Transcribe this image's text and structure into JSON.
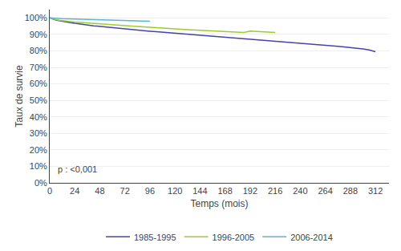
{
  "chart_data": {
    "type": "line",
    "xlabel": "Temps (mois)",
    "ylabel": "Taux de survie",
    "xlim": [
      0,
      325
    ],
    "ylim": [
      0.0,
      1.05
    ],
    "xticks": [
      0,
      24,
      48,
      72,
      96,
      120,
      144,
      168,
      192,
      216,
      240,
      264,
      288,
      312
    ],
    "yticks": [
      {
        "value": 0.0,
        "label": "0%"
      },
      {
        "value": 0.1,
        "label": "10%"
      },
      {
        "value": 0.2,
        "label": "20%"
      },
      {
        "value": 0.3,
        "label": "30%"
      },
      {
        "value": 0.4,
        "label": "40%"
      },
      {
        "value": 0.5,
        "label": "50%"
      },
      {
        "value": 0.6,
        "label": "60%"
      },
      {
        "value": 0.7,
        "label": "70%"
      },
      {
        "value": 0.8,
        "label": "80%"
      },
      {
        "value": 0.9,
        "label": "90%"
      },
      {
        "value": 1.0,
        "label": "100%"
      }
    ],
    "grid": "y",
    "legend": "bottom",
    "annotations": [
      "p : <0,001"
    ],
    "series": [
      {
        "name": "1985-1995",
        "color": "#4444aa",
        "x": [
          0,
          3,
          6,
          9,
          12,
          15,
          18,
          21,
          24,
          27,
          30,
          33,
          36,
          39,
          42,
          45,
          48,
          54,
          60,
          66,
          72,
          78,
          84,
          90,
          96,
          102,
          108,
          114,
          120,
          126,
          132,
          138,
          144,
          150,
          156,
          162,
          168,
          174,
          180,
          186,
          192,
          198,
          204,
          210,
          216,
          222,
          228,
          234,
          240,
          246,
          252,
          258,
          264,
          270,
          276,
          282,
          288,
          294,
          300,
          306,
          312
        ],
        "values": [
          1.0,
          0.993,
          0.987,
          0.983,
          0.979,
          0.976,
          0.973,
          0.97,
          0.967,
          0.964,
          0.962,
          0.959,
          0.957,
          0.955,
          0.952,
          0.95,
          0.948,
          0.944,
          0.94,
          0.936,
          0.932,
          0.929,
          0.926,
          0.922,
          0.919,
          0.916,
          0.913,
          0.91,
          0.907,
          0.904,
          0.901,
          0.898,
          0.895,
          0.892,
          0.889,
          0.887,
          0.884,
          0.881,
          0.878,
          0.875,
          0.872,
          0.869,
          0.866,
          0.863,
          0.86,
          0.857,
          0.854,
          0.851,
          0.848,
          0.845,
          0.841,
          0.838,
          0.835,
          0.832,
          0.828,
          0.824,
          0.821,
          0.817,
          0.812,
          0.806,
          0.795
        ]
      },
      {
        "name": "1996-2005",
        "color": "#9acd32",
        "x": [
          0,
          3,
          6,
          9,
          12,
          15,
          18,
          21,
          24,
          30,
          36,
          42,
          48,
          54,
          60,
          66,
          72,
          78,
          84,
          90,
          96,
          102,
          108,
          114,
          120,
          126,
          132,
          138,
          144,
          150,
          156,
          162,
          168,
          174,
          180,
          186,
          192,
          198,
          204,
          210,
          216
        ],
        "values": [
          1.0,
          0.994,
          0.989,
          0.986,
          0.983,
          0.981,
          0.979,
          0.977,
          0.975,
          0.972,
          0.969,
          0.967,
          0.964,
          0.961,
          0.958,
          0.956,
          0.953,
          0.951,
          0.948,
          0.946,
          0.943,
          0.941,
          0.938,
          0.936,
          0.934,
          0.931,
          0.929,
          0.927,
          0.925,
          0.923,
          0.921,
          0.919,
          0.917,
          0.915,
          0.913,
          0.912,
          0.92,
          0.918,
          0.916,
          0.914,
          0.912
        ]
      },
      {
        "name": "2006-2014",
        "color": "#5ab4d4",
        "x": [
          0,
          3,
          6,
          9,
          12,
          18,
          24,
          30,
          36,
          42,
          48,
          54,
          60,
          66,
          72,
          78,
          84,
          90,
          96
        ],
        "values": [
          1.0,
          0.998,
          0.997,
          0.996,
          0.995,
          0.994,
          0.993,
          0.991,
          0.99,
          0.989,
          0.988,
          0.987,
          0.986,
          0.985,
          0.984,
          0.983,
          0.982,
          0.981,
          0.98
        ]
      }
    ]
  }
}
